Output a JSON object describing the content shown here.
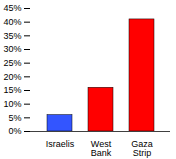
{
  "chart_data": {
    "type": "bar",
    "categories": [
      "Israelis",
      "West Bank",
      "Gaza Strip"
    ],
    "values": [
      6,
      16,
      41
    ],
    "colors": [
      "#3355ff",
      "#ff0000",
      "#ff0000"
    ],
    "ylim": [
      0,
      45
    ],
    "yticks": [
      {
        "value": 0,
        "label": "0%"
      },
      {
        "value": 5,
        "label": "5%"
      },
      {
        "value": 10,
        "label": "10%"
      },
      {
        "value": 15,
        "label": "15%"
      },
      {
        "value": 20,
        "label": "20%"
      },
      {
        "value": 25,
        "label": "25%"
      },
      {
        "value": 30,
        "label": "30%"
      },
      {
        "value": 35,
        "label": "35%"
      },
      {
        "value": 40,
        "label": "40%"
      },
      {
        "value": 45,
        "label": "45%"
      }
    ],
    "grid": false
  }
}
